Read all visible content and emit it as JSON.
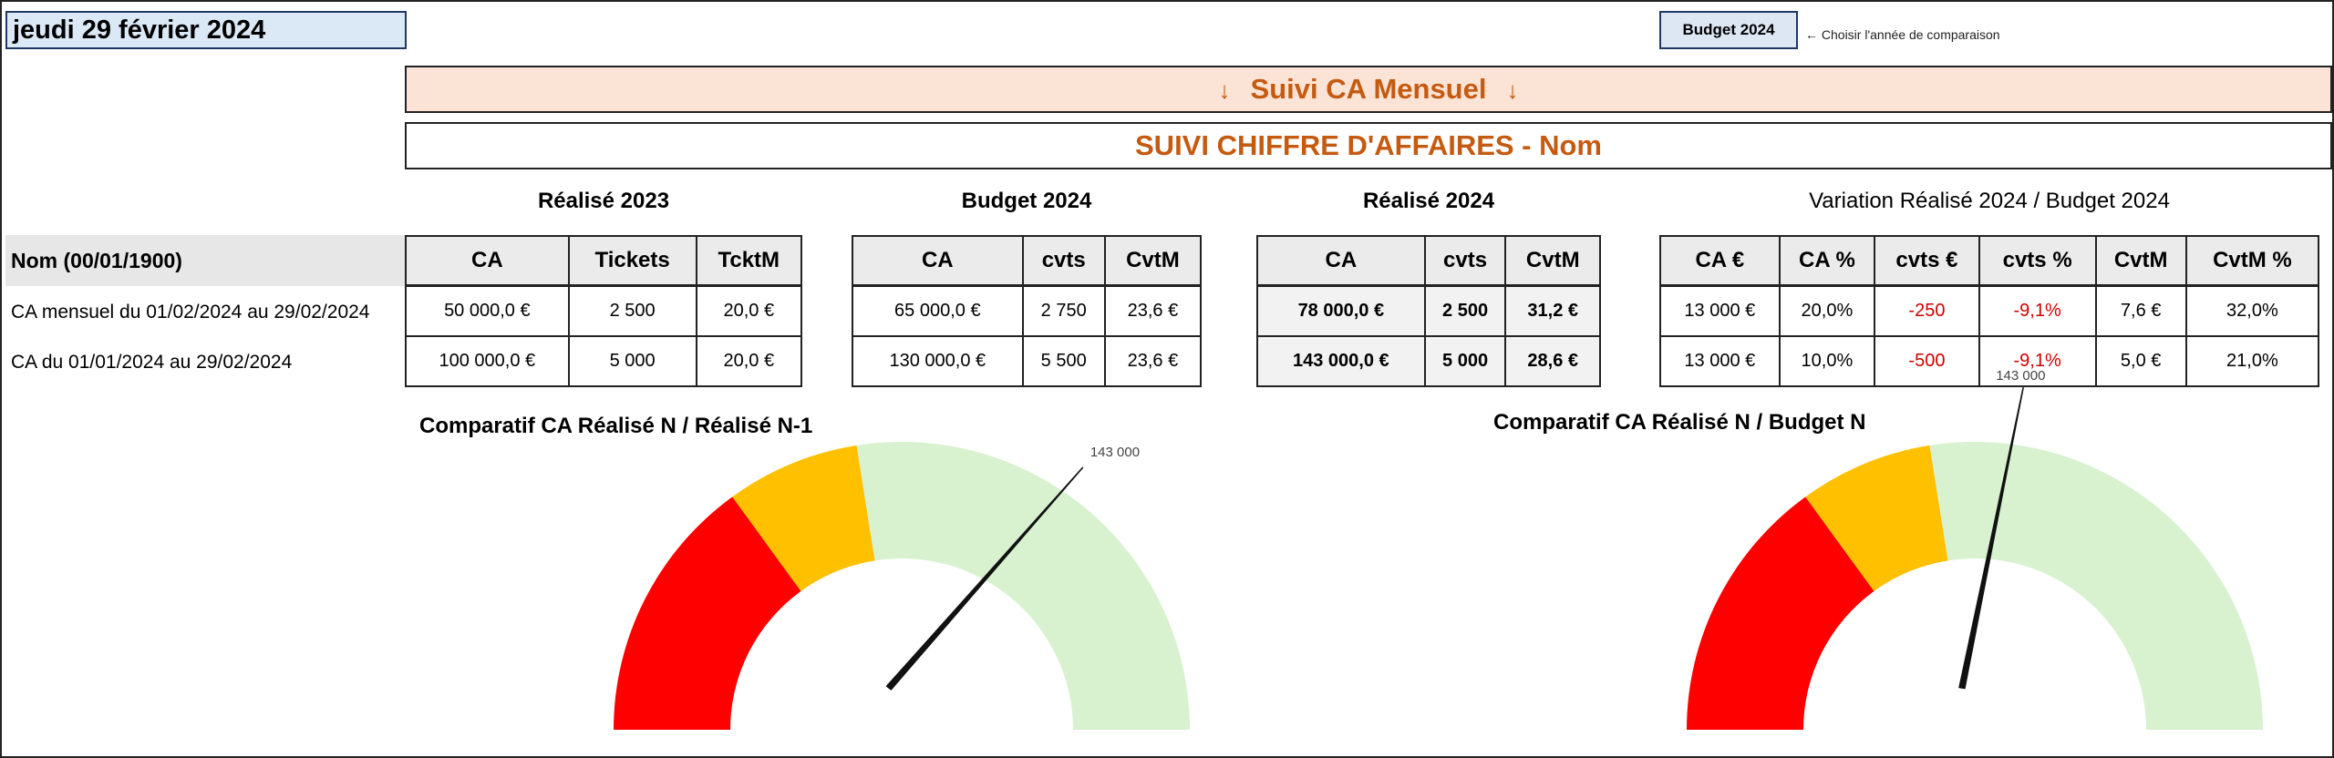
{
  "header": {
    "date": "jeudi 29 février 2024",
    "comparison_button": "Budget 2024",
    "comparison_hint": "← Choisir l'année de comparaison",
    "banner": "Suivi CA Mensuel",
    "banner_arrow": "↓",
    "subtitle": "SUIVI CHIFFRE D'AFFAIRES - Nom"
  },
  "rows": {
    "header_label": "Nom (00/01/1900)",
    "labels": [
      "CA mensuel du 01/02/2024 au 29/02/2024",
      "CA du 01/01/2024 au 29/02/2024"
    ]
  },
  "groups": [
    {
      "title": "Réalisé 2023",
      "columns": [
        "CA",
        "Tickets",
        "TcktM"
      ],
      "rows": [
        [
          "50 000,0 €",
          "2 500",
          "20,0 €"
        ],
        [
          "100 000,0 €",
          "5 000",
          "20,0 €"
        ]
      ]
    },
    {
      "title": "Budget 2024",
      "columns": [
        "CA",
        "cvts",
        "CvtM"
      ],
      "rows": [
        [
          "65 000,0 €",
          "2 750",
          "23,6 €"
        ],
        [
          "130 000,0 €",
          "5 500",
          "23,6 €"
        ]
      ]
    },
    {
      "title": "Réalisé 2024",
      "columns": [
        "CA",
        "cvts",
        "CvtM"
      ],
      "rows": [
        [
          "78 000,0 €",
          "2 500",
          "31,2 €"
        ],
        [
          "143 000,0 €",
          "5 000",
          "28,6 €"
        ]
      ]
    },
    {
      "title": "Variation Réalisé 2024 / Budget 2024",
      "columns": [
        "CA €",
        "CA %",
        "cvts €",
        "cvts %",
        "CvtM",
        "CvtM %"
      ],
      "rows": [
        [
          "13 000 €",
          "20,0%",
          "-250",
          "-9,1%",
          "7,6 €",
          "32,0%"
        ],
        [
          "13 000 €",
          "10,0%",
          "-500",
          "-9,1%",
          "5,0 €",
          "21,0%"
        ]
      ]
    }
  ],
  "colors": {
    "red": "#ff0000",
    "yellow": "#ffc000",
    "green": "#d8f2d0",
    "accent": "#c55a11",
    "negative": "#d00000"
  },
  "chart_data": [
    {
      "type": "gauge",
      "title": "Comparatif CA Réalisé N / Réalisé N-1",
      "value": 143000,
      "value_label": "143 000",
      "range": [
        0,
        200000
      ],
      "bands": [
        {
          "from": 0,
          "to": 60000,
          "color": "red"
        },
        {
          "from": 60000,
          "to": 90000,
          "color": "yellow"
        },
        {
          "from": 90000,
          "to": 200000,
          "color": "green"
        }
      ]
    },
    {
      "type": "gauge",
      "title": "Comparatif CA Réalisé N / Budget N",
      "value": 143000,
      "value_label": "143 000",
      "range": [
        0,
        260000
      ],
      "bands": [
        {
          "from": 0,
          "to": 78000,
          "color": "red"
        },
        {
          "from": 78000,
          "to": 117000,
          "color": "yellow"
        },
        {
          "from": 117000,
          "to": 260000,
          "color": "green"
        }
      ]
    }
  ]
}
